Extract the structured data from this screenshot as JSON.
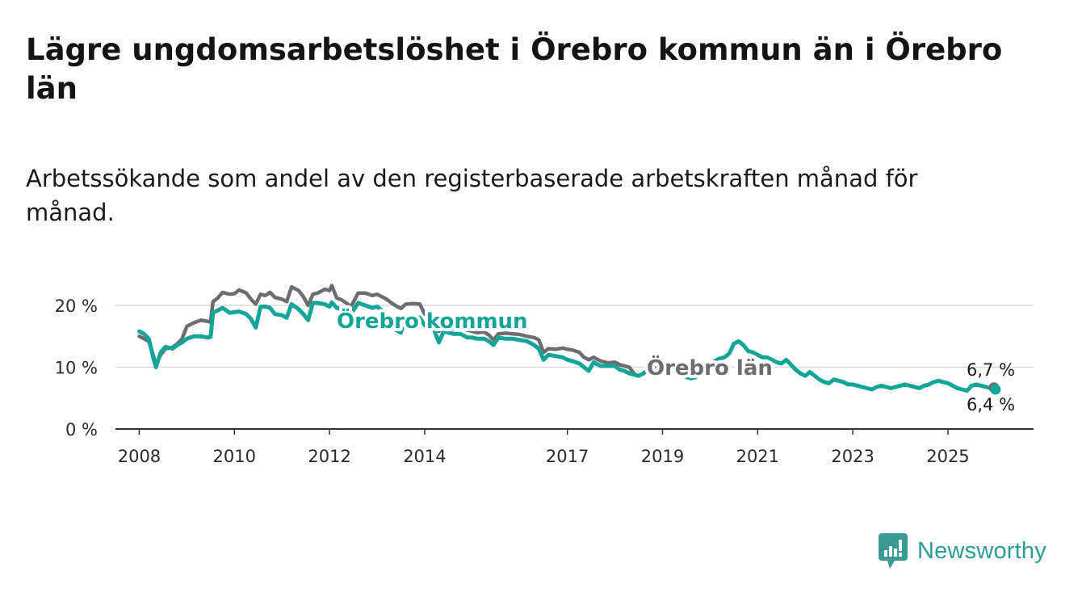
{
  "title": "Lägre ungdomsarbetslöshet i Örebro kommun än i Örebro län",
  "subtitle": "Arbetssökande som andel av den registerbaserade arbetskraften månad för månad.",
  "brand": {
    "name": "Newsworthy",
    "icon": "newsworthy-chart-bubble-icon",
    "color": "#3a9a94"
  },
  "colors": {
    "kommun": "#12a598",
    "lan": "#6d6c70",
    "grid": "#d9d9d9",
    "axis": "#333333"
  },
  "chart_data": {
    "type": "line",
    "title": "Lägre ungdomsarbetslöshet i Örebro kommun än i Örebro län",
    "xlabel": "",
    "ylabel": "",
    "ylim": [
      0,
      20
    ],
    "xlim": [
      2007.5,
      2026.8
    ],
    "grid": true,
    "y_ticks": [
      {
        "value": 0,
        "label": "0 %"
      },
      {
        "value": 10,
        "label": "10 %"
      },
      {
        "value": 20,
        "label": "20 %"
      }
    ],
    "x_ticks": [
      {
        "value": 2008,
        "label": "2008"
      },
      {
        "value": 2010,
        "label": "2010"
      },
      {
        "value": 2012,
        "label": "2012"
      },
      {
        "value": 2014,
        "label": "2014"
      },
      {
        "value": 2017,
        "label": "2017"
      },
      {
        "value": 2019,
        "label": "2019"
      },
      {
        "value": 2021,
        "label": "2021"
      },
      {
        "value": 2023,
        "label": "2023"
      },
      {
        "value": 2025,
        "label": "2025"
      }
    ],
    "series": [
      {
        "name": "Örebro län",
        "color": "#6d6c70",
        "label": "Örebro län",
        "end_label": "6,7 %",
        "points": [
          [
            2008.0,
            15.0
          ],
          [
            2008.1,
            14.6
          ],
          [
            2008.2,
            14.2
          ],
          [
            2008.3,
            11.8
          ],
          [
            2008.35,
            10.4
          ],
          [
            2008.45,
            12.0
          ],
          [
            2008.55,
            13.0
          ],
          [
            2008.7,
            13.2
          ],
          [
            2008.8,
            13.8
          ],
          [
            2008.9,
            14.6
          ],
          [
            2009.0,
            16.6
          ],
          [
            2009.15,
            17.2
          ],
          [
            2009.3,
            17.6
          ],
          [
            2009.45,
            17.4
          ],
          [
            2009.5,
            17.3
          ],
          [
            2009.55,
            20.6
          ],
          [
            2009.65,
            21.2
          ],
          [
            2009.75,
            22.1
          ],
          [
            2009.9,
            21.8
          ],
          [
            2010.0,
            21.9
          ],
          [
            2010.1,
            22.5
          ],
          [
            2010.25,
            22.0
          ],
          [
            2010.35,
            21.0
          ],
          [
            2010.45,
            20.2
          ],
          [
            2010.55,
            21.8
          ],
          [
            2010.65,
            21.6
          ],
          [
            2010.75,
            22.1
          ],
          [
            2010.85,
            21.3
          ],
          [
            2011.0,
            21.0
          ],
          [
            2011.1,
            20.6
          ],
          [
            2011.2,
            23.0
          ],
          [
            2011.35,
            22.4
          ],
          [
            2011.45,
            21.4
          ],
          [
            2011.55,
            20.0
          ],
          [
            2011.65,
            21.8
          ],
          [
            2011.75,
            22.0
          ],
          [
            2011.9,
            22.6
          ],
          [
            2012.0,
            22.4
          ],
          [
            2012.05,
            23.2
          ],
          [
            2012.15,
            21.2
          ],
          [
            2012.25,
            20.9
          ],
          [
            2012.35,
            20.4
          ],
          [
            2012.45,
            19.8
          ],
          [
            2012.55,
            21.2
          ],
          [
            2012.6,
            22.0
          ],
          [
            2012.75,
            22.0
          ],
          [
            2012.9,
            21.6
          ],
          [
            2013.0,
            21.8
          ],
          [
            2013.1,
            21.4
          ],
          [
            2013.2,
            21.0
          ],
          [
            2013.3,
            20.4
          ],
          [
            2013.4,
            19.9
          ],
          [
            2013.5,
            19.5
          ],
          [
            2013.6,
            20.2
          ],
          [
            2013.75,
            20.3
          ],
          [
            2013.9,
            20.2
          ],
          [
            2014.0,
            18.6
          ],
          [
            2014.1,
            18.4
          ],
          [
            2014.2,
            18.0
          ],
          [
            2014.3,
            15.8
          ],
          [
            2014.4,
            16.6
          ],
          [
            2014.5,
            16.4
          ],
          [
            2014.6,
            16.2
          ],
          [
            2014.75,
            16.4
          ],
          [
            2014.9,
            16.0
          ],
          [
            2015.0,
            15.8
          ],
          [
            2015.1,
            15.6
          ],
          [
            2015.25,
            15.7
          ],
          [
            2015.35,
            15.2
          ],
          [
            2015.45,
            14.4
          ],
          [
            2015.55,
            15.4
          ],
          [
            2015.7,
            15.5
          ],
          [
            2015.85,
            15.4
          ],
          [
            2016.0,
            15.3
          ],
          [
            2016.15,
            15.0
          ],
          [
            2016.3,
            14.8
          ],
          [
            2016.4,
            14.4
          ],
          [
            2016.5,
            12.4
          ],
          [
            2016.6,
            13.0
          ],
          [
            2016.75,
            12.9
          ],
          [
            2016.9,
            13.1
          ],
          [
            2017.0,
            12.9
          ],
          [
            2017.1,
            12.8
          ],
          [
            2017.25,
            12.4
          ],
          [
            2017.35,
            11.6
          ],
          [
            2017.45,
            11.2
          ],
          [
            2017.55,
            11.6
          ],
          [
            2017.7,
            11.0
          ],
          [
            2017.85,
            10.7
          ],
          [
            2018.0,
            10.8
          ],
          [
            2018.1,
            10.4
          ],
          [
            2018.2,
            10.2
          ],
          [
            2018.3,
            10.0
          ],
          [
            2018.4,
            9.0
          ]
        ]
      },
      {
        "name": "Örebro kommun",
        "color": "#12a598",
        "label": "Örebro kommun",
        "end_label": "6,4 %",
        "points": [
          [
            2008.0,
            15.8
          ],
          [
            2008.1,
            15.4
          ],
          [
            2008.2,
            14.6
          ],
          [
            2008.3,
            11.4
          ],
          [
            2008.35,
            10.0
          ],
          [
            2008.45,
            12.4
          ],
          [
            2008.55,
            13.3
          ],
          [
            2008.7,
            13.0
          ],
          [
            2008.8,
            13.6
          ],
          [
            2008.9,
            14.0
          ],
          [
            2009.0,
            14.6
          ],
          [
            2009.15,
            15.0
          ],
          [
            2009.3,
            15.0
          ],
          [
            2009.45,
            14.8
          ],
          [
            2009.5,
            14.9
          ],
          [
            2009.55,
            18.8
          ],
          [
            2009.65,
            19.2
          ],
          [
            2009.75,
            19.6
          ],
          [
            2009.9,
            18.8
          ],
          [
            2010.0,
            18.9
          ],
          [
            2010.1,
            19.0
          ],
          [
            2010.25,
            18.6
          ],
          [
            2010.35,
            17.8
          ],
          [
            2010.45,
            16.4
          ],
          [
            2010.55,
            19.8
          ],
          [
            2010.65,
            19.8
          ],
          [
            2010.75,
            19.6
          ],
          [
            2010.85,
            18.6
          ],
          [
            2011.0,
            18.4
          ],
          [
            2011.1,
            18.0
          ],
          [
            2011.2,
            20.2
          ],
          [
            2011.35,
            19.4
          ],
          [
            2011.45,
            18.6
          ],
          [
            2011.55,
            17.6
          ],
          [
            2011.65,
            20.4
          ],
          [
            2011.75,
            20.4
          ],
          [
            2011.9,
            20.2
          ],
          [
            2012.0,
            19.8
          ],
          [
            2012.05,
            20.5
          ],
          [
            2012.15,
            19.6
          ],
          [
            2012.25,
            19.4
          ],
          [
            2012.35,
            19.2
          ],
          [
            2012.45,
            18.6
          ],
          [
            2012.55,
            19.8
          ],
          [
            2012.6,
            20.4
          ],
          [
            2012.75,
            20.0
          ],
          [
            2012.9,
            19.6
          ],
          [
            2013.0,
            19.8
          ],
          [
            2013.1,
            19.2
          ],
          [
            2013.2,
            18.4
          ],
          [
            2013.3,
            17.6
          ],
          [
            2013.4,
            16.0
          ],
          [
            2013.5,
            15.6
          ],
          [
            2013.6,
            18.2
          ],
          [
            2013.75,
            18.4
          ],
          [
            2013.9,
            18.0
          ],
          [
            2014.0,
            16.8
          ],
          [
            2014.1,
            16.4
          ],
          [
            2014.2,
            16.0
          ],
          [
            2014.3,
            14.0
          ],
          [
            2014.4,
            15.8
          ],
          [
            2014.5,
            15.6
          ],
          [
            2014.6,
            15.4
          ],
          [
            2014.75,
            15.4
          ],
          [
            2014.9,
            14.8
          ],
          [
            2015.0,
            14.8
          ],
          [
            2015.1,
            14.6
          ],
          [
            2015.25,
            14.6
          ],
          [
            2015.35,
            14.2
          ],
          [
            2015.45,
            13.6
          ],
          [
            2015.55,
            14.8
          ],
          [
            2015.7,
            14.6
          ],
          [
            2015.85,
            14.6
          ],
          [
            2016.0,
            14.4
          ],
          [
            2016.15,
            14.2
          ],
          [
            2016.3,
            13.6
          ],
          [
            2016.4,
            13.0
          ],
          [
            2016.5,
            11.2
          ],
          [
            2016.6,
            12.0
          ],
          [
            2016.75,
            11.8
          ],
          [
            2016.9,
            11.6
          ],
          [
            2017.0,
            11.2
          ],
          [
            2017.1,
            11.0
          ],
          [
            2017.25,
            10.6
          ],
          [
            2017.35,
            10.0
          ],
          [
            2017.45,
            9.4
          ],
          [
            2017.55,
            10.8
          ],
          [
            2017.7,
            10.2
          ],
          [
            2017.85,
            10.2
          ],
          [
            2018.0,
            10.2
          ],
          [
            2018.1,
            9.6
          ],
          [
            2018.2,
            9.4
          ],
          [
            2018.3,
            9.0
          ],
          [
            2018.4,
            8.8
          ],
          [
            2018.5,
            8.6
          ],
          [
            2018.6,
            9.0
          ],
          [
            2018.7,
            9.6
          ],
          [
            2018.8,
            10.0
          ],
          [
            2018.9,
            9.8
          ],
          [
            2019.0,
            9.8
          ],
          [
            2019.2,
            9.6
          ],
          [
            2019.3,
            9.4
          ],
          [
            2019.4,
            8.8
          ],
          [
            2019.5,
            8.4
          ],
          [
            2019.6,
            8.2
          ],
          [
            2019.7,
            8.4
          ],
          [
            2019.8,
            9.2
          ],
          [
            2019.9,
            10.0
          ],
          [
            2020.0,
            10.6
          ],
          [
            2020.1,
            11.0
          ],
          [
            2020.2,
            11.4
          ],
          [
            2020.3,
            11.6
          ],
          [
            2020.4,
            12.2
          ],
          [
            2020.5,
            13.8
          ],
          [
            2020.6,
            14.2
          ],
          [
            2020.7,
            13.6
          ],
          [
            2020.8,
            12.6
          ],
          [
            2020.9,
            12.4
          ],
          [
            2021.0,
            12.0
          ],
          [
            2021.1,
            11.6
          ],
          [
            2021.2,
            11.6
          ],
          [
            2021.3,
            11.2
          ],
          [
            2021.4,
            10.8
          ],
          [
            2021.5,
            10.6
          ],
          [
            2021.6,
            11.2
          ],
          [
            2021.7,
            10.4
          ],
          [
            2021.8,
            9.6
          ],
          [
            2021.9,
            9.0
          ],
          [
            2022.0,
            8.6
          ],
          [
            2022.1,
            9.2
          ],
          [
            2022.2,
            8.6
          ],
          [
            2022.3,
            8.0
          ],
          [
            2022.4,
            7.6
          ],
          [
            2022.5,
            7.4
          ],
          [
            2022.6,
            8.0
          ],
          [
            2022.7,
            7.8
          ],
          [
            2022.8,
            7.6
          ],
          [
            2022.9,
            7.2
          ],
          [
            2023.0,
            7.2
          ],
          [
            2023.1,
            7.0
          ],
          [
            2023.2,
            6.8
          ],
          [
            2023.3,
            6.6
          ],
          [
            2023.4,
            6.4
          ],
          [
            2023.5,
            6.8
          ],
          [
            2023.6,
            7.0
          ],
          [
            2023.7,
            6.8
          ],
          [
            2023.8,
            6.6
          ],
          [
            2023.9,
            6.8
          ],
          [
            2024.0,
            7.0
          ],
          [
            2024.1,
            7.2
          ],
          [
            2024.2,
            7.0
          ],
          [
            2024.3,
            6.8
          ],
          [
            2024.4,
            6.6
          ],
          [
            2024.5,
            7.0
          ],
          [
            2024.6,
            7.2
          ],
          [
            2024.7,
            7.6
          ],
          [
            2024.8,
            7.8
          ],
          [
            2024.9,
            7.6
          ],
          [
            2025.0,
            7.4
          ],
          [
            2025.1,
            7.0
          ],
          [
            2025.2,
            6.6
          ],
          [
            2025.3,
            6.4
          ],
          [
            2025.4,
            6.2
          ],
          [
            2025.5,
            7.0
          ],
          [
            2025.6,
            7.2
          ],
          [
            2025.7,
            7.0
          ],
          [
            2025.8,
            6.8
          ],
          [
            2025.9,
            6.6
          ],
          [
            2026.0,
            6.4
          ]
        ]
      }
    ]
  }
}
